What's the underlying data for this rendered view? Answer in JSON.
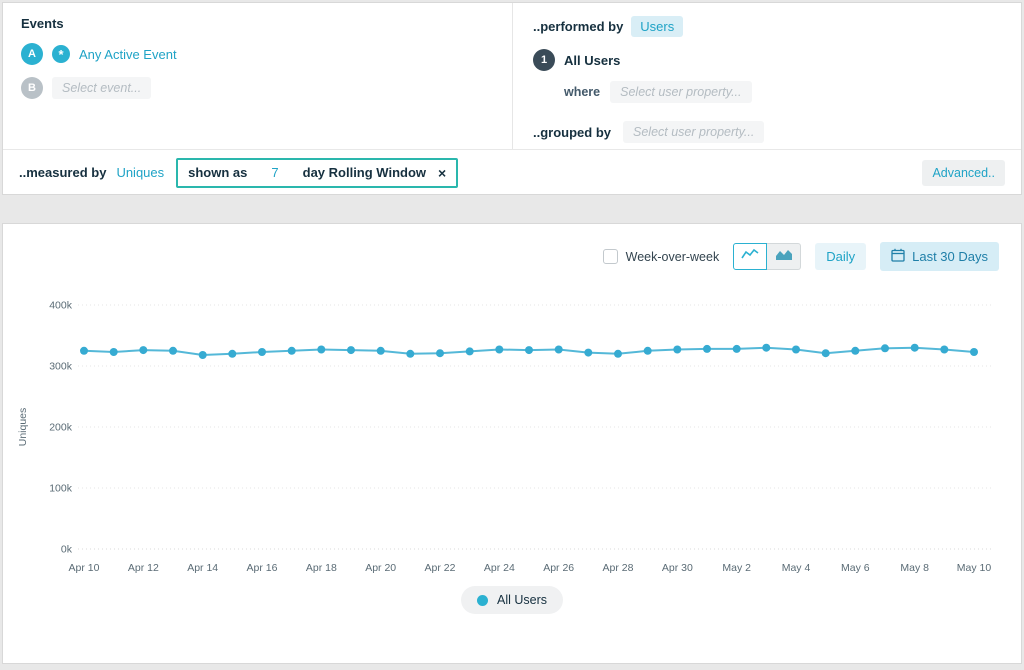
{
  "colors": {
    "accent": "#1fa3c6",
    "line": "#54b8d8",
    "dot": "#36abd2",
    "box_border": "#2ab7ad"
  },
  "events_panel": {
    "title": "Events",
    "row_a": {
      "badge": "A",
      "icon": "any-active-event-icon",
      "label": "Any Active Event"
    },
    "row_b": {
      "badge": "B",
      "placeholder": "Select event..."
    }
  },
  "performed_by": {
    "label": "..performed by",
    "value": "Users",
    "row1": {
      "badge": "1",
      "label": "All Users"
    },
    "where": {
      "label": "where",
      "placeholder": "Select user property..."
    },
    "grouped_by": {
      "label": "..grouped by",
      "placeholder": "Select user property..."
    }
  },
  "measured_bar": {
    "label": "..measured by",
    "metric": "Uniques",
    "shown_as": "shown as",
    "window_value": "7",
    "window_label": "day Rolling Window",
    "close": "×",
    "advanced": "Advanced.."
  },
  "chart_controls": {
    "week_over_week": "Week-over-week",
    "daily": "Daily",
    "last_30_days": "Last 30 Days"
  },
  "legend": {
    "label": "All Users"
  },
  "chart_data": {
    "type": "line",
    "title": "",
    "ylabel": "Uniques",
    "ylim": [
      0,
      400000
    ],
    "y_ticks": [
      "0k",
      "100k",
      "200k",
      "300k",
      "400k"
    ],
    "grid": true,
    "legend_position": "bottom",
    "x": [
      "Apr 10",
      "Apr 11",
      "Apr 12",
      "Apr 13",
      "Apr 14",
      "Apr 15",
      "Apr 16",
      "Apr 17",
      "Apr 18",
      "Apr 19",
      "Apr 20",
      "Apr 21",
      "Apr 22",
      "Apr 23",
      "Apr 24",
      "Apr 25",
      "Apr 26",
      "Apr 27",
      "Apr 28",
      "Apr 29",
      "Apr 30",
      "May 1",
      "May 2",
      "May 3",
      "May 4",
      "May 5",
      "May 6",
      "May 7",
      "May 8",
      "May 9",
      "May 10"
    ],
    "x_tick_labels": [
      "Apr 10",
      "Apr 12",
      "Apr 14",
      "Apr 16",
      "Apr 18",
      "Apr 20",
      "Apr 22",
      "Apr 24",
      "Apr 26",
      "Apr 28",
      "Apr 30",
      "May 2",
      "May 4",
      "May 6",
      "May 8",
      "May 10"
    ],
    "series": [
      {
        "name": "All Users",
        "values": [
          325000,
          323000,
          326000,
          325000,
          318000,
          320000,
          323000,
          325000,
          327000,
          326000,
          325000,
          320000,
          321000,
          324000,
          327000,
          326000,
          327000,
          322000,
          320000,
          325000,
          327000,
          328000,
          328000,
          330000,
          327000,
          321000,
          325000,
          329000,
          330000,
          327000,
          323000
        ]
      }
    ]
  }
}
